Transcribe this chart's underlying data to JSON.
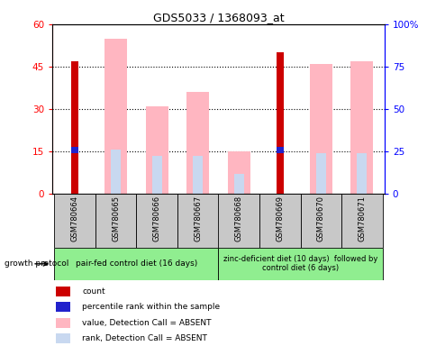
{
  "title": "GDS5033 / 1368093_at",
  "samples": [
    "GSM780664",
    "GSM780665",
    "GSM780666",
    "GSM780667",
    "GSM780668",
    "GSM780669",
    "GSM780670",
    "GSM780671"
  ],
  "count_values": [
    47,
    0,
    0,
    0,
    0,
    50,
    0,
    0
  ],
  "percentile_rank": [
    15.5,
    0,
    0,
    0,
    0,
    15.5,
    0,
    0
  ],
  "value_absent": [
    0,
    55,
    31,
    36,
    15,
    0,
    46,
    47
  ],
  "rank_absent": [
    0,
    15.5,
    13.5,
    13.5,
    7,
    0,
    14.5,
    14.5
  ],
  "count_color": "#CC0000",
  "percentile_color": "#2222CC",
  "value_absent_color": "#FFB6C1",
  "rank_absent_color": "#C8D8F0",
  "ylim_left": [
    0,
    60
  ],
  "ylim_right": [
    0,
    100
  ],
  "yticks_left": [
    0,
    15,
    30,
    45,
    60
  ],
  "yticks_right": [
    0,
    25,
    50,
    75,
    100
  ],
  "group1_label": "pair-fed control diet (16 days)",
  "group2_label": "zinc-deficient diet (10 days)  followed by\ncontrol diet (6 days)",
  "growth_protocol_label": "growth protocol",
  "group_box_color": "#90EE90",
  "sample_box_color": "#C8C8C8"
}
